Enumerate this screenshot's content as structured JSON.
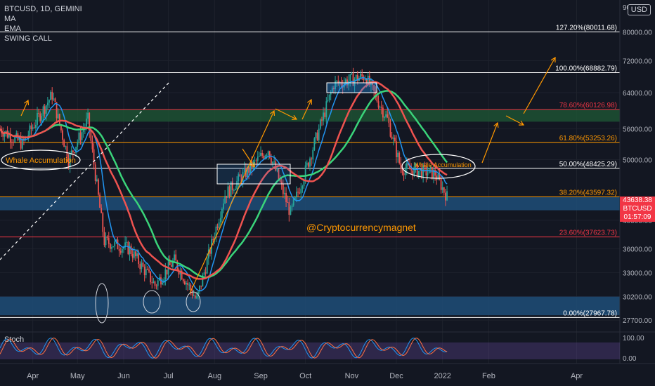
{
  "legend": {
    "symbol": "BTCUSD, 1D, GEMINI",
    "indicators": [
      "MA",
      "EMA",
      "SWING CALL"
    ]
  },
  "currency_button": "USD",
  "price_axis": {
    "ticks": [
      "80000.00",
      "72000.00",
      "64000.00",
      "56000.00",
      "50000.00",
      "40000.00",
      "36000.00",
      "33000.00",
      "30200.00",
      "27700.00"
    ],
    "top_partial": "90"
  },
  "time_axis": {
    "ticks": [
      "Apr",
      "May",
      "Jun",
      "Jul",
      "Aug",
      "Sep",
      "Oct",
      "Nov",
      "Dec",
      "2022",
      "Feb",
      "Apr"
    ]
  },
  "fib_levels": [
    {
      "label": "127.20%(80011.68)",
      "price": 80011.68,
      "color": "#ffffff"
    },
    {
      "label": "100.00%(68882.79)",
      "price": 68882.79,
      "color": "#ffffff"
    },
    {
      "label": "78.60%(60126.98)",
      "price": 60126.98,
      "color": "#f23645"
    },
    {
      "label": "61.80%(53253.26)",
      "price": 53253.26,
      "color": "#ff9800"
    },
    {
      "label": "50.00%(48425.29)",
      "price": 48425.29,
      "color": "#ffffff"
    },
    {
      "label": "38.20%(43597.32)",
      "price": 43597.32,
      "color": "#ff9800"
    },
    {
      "label": "23.60%(37623.73)",
      "price": 37623.73,
      "color": "#f23645"
    },
    {
      "label": "0.00%(27967.78)",
      "price": 27967.78,
      "color": "#ffffff"
    }
  ],
  "annotations": {
    "whale_left": "Whale Accumulation",
    "whale_right": "Whale Accumulation",
    "watermark": "@Cryptocurrencymagnet"
  },
  "last_price": {
    "value": "43638.38",
    "symbol": "BTCUSD",
    "countdown": "01:57:09"
  },
  "stoch": {
    "label": "Stoch",
    "ticks": [
      "100.00",
      "0.00"
    ]
  },
  "colors": {
    "bg": "#131722",
    "up": "#26a69a",
    "down": "#ef5350",
    "ma": "#ef5350",
    "ema_green": "#3ad47a",
    "ema_blue": "#2196f3",
    "fib_zone_green": "#1f5a35",
    "zone_blue": "#1e4d78"
  },
  "chart_data": {
    "type": "candlestick",
    "title": "BTCUSD, 1D, GEMINI",
    "y_scale": "log",
    "ylim": [
      27000,
      90000
    ],
    "x_range": [
      "2021-03-10",
      "2022-04-30"
    ],
    "close_path": [
      {
        "date": "2021-03-10",
        "close": 56000
      },
      {
        "date": "2021-03-25",
        "close": 53000
      },
      {
        "date": "2021-04-14",
        "close": 63500
      },
      {
        "date": "2021-04-25",
        "close": 50000
      },
      {
        "date": "2021-05-08",
        "close": 58000
      },
      {
        "date": "2021-05-19",
        "close": 37000
      },
      {
        "date": "2021-06-05",
        "close": 36000
      },
      {
        "date": "2021-06-22",
        "close": 31500
      },
      {
        "date": "2021-07-05",
        "close": 34500
      },
      {
        "date": "2021-07-20",
        "close": 29800
      },
      {
        "date": "2021-08-08",
        "close": 44000
      },
      {
        "date": "2021-09-06",
        "close": 52000
      },
      {
        "date": "2021-09-21",
        "close": 41000
      },
      {
        "date": "2021-10-01",
        "close": 48000
      },
      {
        "date": "2021-10-20",
        "close": 66000
      },
      {
        "date": "2021-11-10",
        "close": 68000
      },
      {
        "date": "2021-11-25",
        "close": 58000
      },
      {
        "date": "2021-12-04",
        "close": 48500
      },
      {
        "date": "2021-12-27",
        "close": 47500
      },
      {
        "date": "2022-01-04",
        "close": 43638
      }
    ]
  }
}
